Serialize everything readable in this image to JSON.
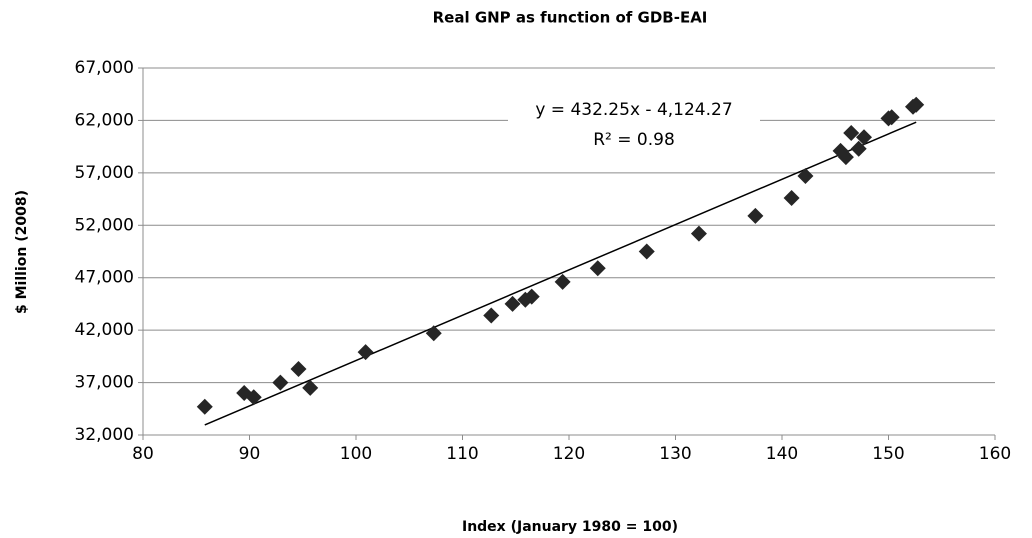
{
  "chart_data": {
    "type": "scatter",
    "title": "Real GNP as function of GDB-EAI",
    "xlabel": "Index (January 1980 = 100)",
    "ylabel": "$ Million (2008)",
    "color": "#262626",
    "x": [
      85.8,
      89.5,
      90.4,
      92.9,
      94.6,
      95.7,
      100.9,
      107.3,
      112.7,
      114.7,
      115.9,
      116.5,
      119.4,
      122.7,
      127.3,
      132.2,
      137.5,
      140.9,
      142.2,
      145.5,
      146.0,
      146.5,
      147.2,
      147.7,
      150.0,
      150.3,
      152.3,
      152.6
    ],
    "values": [
      34700,
      36000,
      35600,
      37000,
      38300,
      36500,
      39900,
      41700,
      43400,
      44500,
      44900,
      45200,
      46600,
      47900,
      49500,
      51200,
      52900,
      54600,
      56700,
      59100,
      58500,
      60800,
      59300,
      60400,
      62200,
      62300,
      63300,
      63500
    ],
    "trendline": {
      "equation": "y = 432.25x - 4,124.27",
      "r2_label": "R² = 0.98",
      "slope": 432.25,
      "intercept": -4124.27
    },
    "xlim": [
      80,
      160
    ],
    "xticks": [
      80,
      90,
      100,
      110,
      120,
      130,
      140,
      150,
      160
    ],
    "ylim": [
      32000,
      67000
    ],
    "yticks": [
      {
        "value": 32000,
        "label": "32,000"
      },
      {
        "value": 37000,
        "label": "37,000"
      },
      {
        "value": 42000,
        "label": "42,000"
      },
      {
        "value": 47000,
        "label": "47,000"
      },
      {
        "value": 52000,
        "label": "52,000"
      },
      {
        "value": 57000,
        "label": "57,000"
      },
      {
        "value": 62000,
        "label": "62,000"
      },
      {
        "value": 67000,
        "label": "67,000"
      }
    ],
    "grid": true
  }
}
